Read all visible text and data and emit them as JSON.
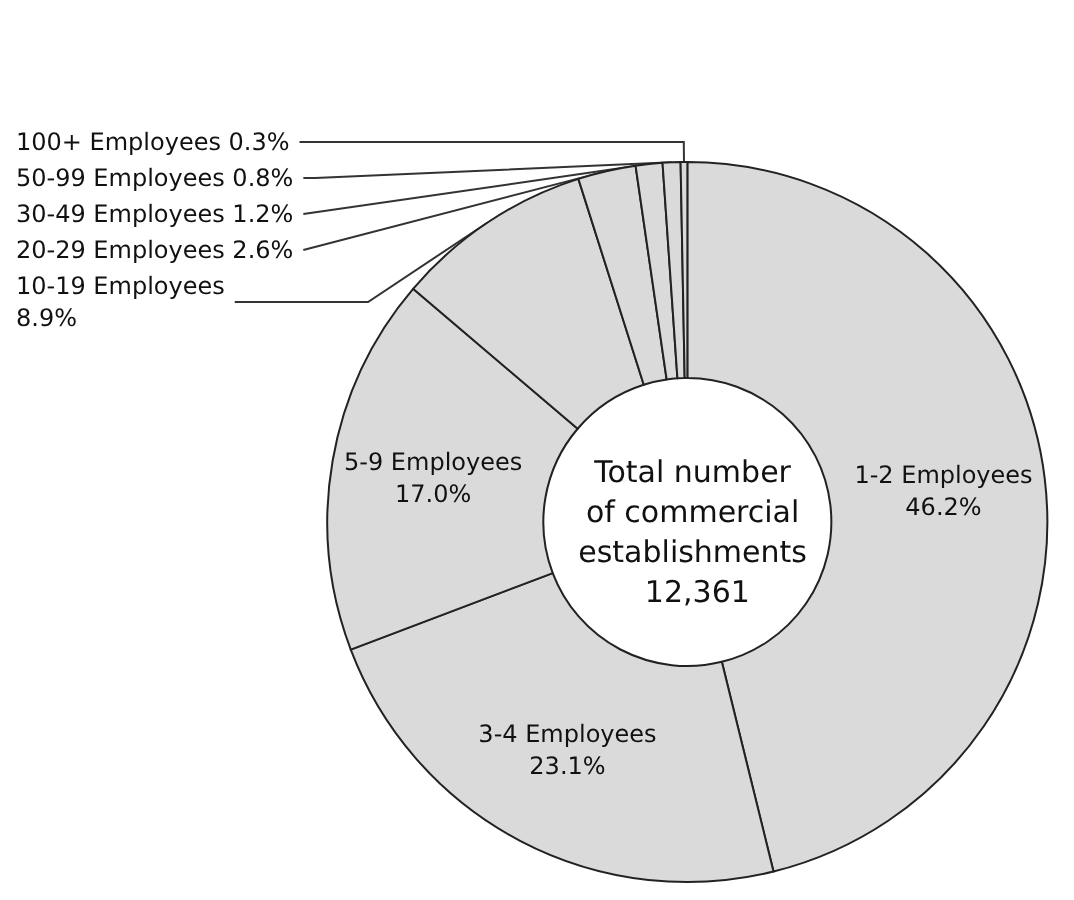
{
  "chart_data": {
    "type": "donut",
    "title": "Total number of commercial establishments 12,361",
    "categories": [
      "1-2 Employees",
      "3-4 Employees",
      "5-9 Employees",
      "10-19 Employees",
      "20-29 Employees",
      "30-49 Employees",
      "50-99 Employees",
      "100+ Employees"
    ],
    "values": [
      46.2,
      23.1,
      17.0,
      8.9,
      2.6,
      1.2,
      0.8,
      0.3
    ],
    "value_labels": [
      "46.2%",
      "23.1%",
      "17.0%",
      "8.9%",
      "2.6%",
      "1.2%",
      "0.8%",
      "0.3%"
    ],
    "colors": [
      "#dadada",
      "#dadada",
      "#dadada",
      "#dadada",
      "#dadada",
      "#dadada",
      "#dadada",
      "#dadada"
    ],
    "legend": false
  }
}
